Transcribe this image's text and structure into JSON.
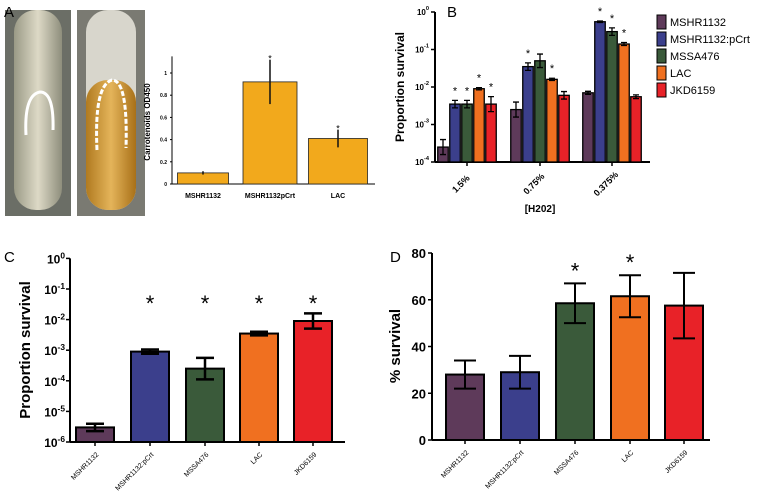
{
  "panel_labels": [
    "A",
    "B",
    "C",
    "D"
  ],
  "colors": {
    "MSHR1132": "#5e3a5a",
    "MSHR1132:pCrt": "#3b3f8c",
    "MSSA476": "#3a5a3a",
    "LAC": "#f07020",
    "JKD6159": "#e82228",
    "carotenoid": "#f2a91c"
  },
  "chart_data": [
    {
      "id": "A",
      "type": "bar",
      "categories": [
        "MSHR1132",
        "MSHR1132pCrt",
        "LAC"
      ],
      "values": [
        0.1,
        0.92,
        0.41
      ],
      "errors": [
        0.015,
        0.2,
        0.08
      ],
      "significance": [
        "",
        "*",
        "*"
      ],
      "ylabel": "Carrotenoids OD450",
      "xlabel": "",
      "ylim": [
        0,
        1.15
      ],
      "yticks": [
        0,
        0.2,
        0.4,
        0.6,
        0.8,
        1
      ],
      "ytick_labels": [
        "0",
        "0.2",
        "0.4",
        "0.6",
        "0.8",
        "1"
      ]
    },
    {
      "id": "B",
      "type": "bar",
      "scale": "log",
      "categories": [
        "1.5%",
        "0.75%",
        "0.375%"
      ],
      "series": [
        {
          "name": "MSHR1132",
          "values": [
            0.00025,
            0.0025,
            0.007
          ],
          "errors_log": [
            0.2,
            0.2,
            0.04
          ],
          "significance": [
            "",
            "",
            ""
          ]
        },
        {
          "name": "MSHR1132:pCrt",
          "values": [
            0.0035,
            0.035,
            0.55
          ],
          "errors_log": [
            0.1,
            0.1,
            0.02
          ],
          "significance": [
            "*",
            "*",
            "*"
          ]
        },
        {
          "name": "MSSA476",
          "values": [
            0.0035,
            0.05,
            0.3
          ],
          "errors_log": [
            0.1,
            0.18,
            0.1
          ],
          "significance": [
            "*",
            "",
            "*"
          ]
        },
        {
          "name": "LAC",
          "values": [
            0.009,
            0.016,
            0.14
          ],
          "errors_log": [
            0.03,
            0.03,
            0.04
          ],
          "significance": [
            "*",
            "*",
            "*"
          ]
        },
        {
          "name": "JKD6159",
          "values": [
            0.0035,
            0.006,
            0.0055
          ],
          "errors_log": [
            0.2,
            0.1,
            0.05
          ],
          "significance": [
            "*",
            "",
            ""
          ]
        }
      ],
      "xlabel": "[H202]",
      "ylabel": "Proportion survival",
      "ylim_log10": [
        -4,
        0
      ],
      "ytick_labels": [
        "10-4",
        "10-3",
        "10-2",
        "10-1",
        "100"
      ],
      "legend": "right"
    },
    {
      "id": "C",
      "type": "bar",
      "scale": "log",
      "categories": [
        "MSHR1132",
        "MSHR1132:pCrt",
        "MSSA476",
        "LAC",
        "JKD6159"
      ],
      "values": [
        3e-06,
        0.0009,
        0.00025,
        0.0035,
        0.009
      ],
      "errors_log": [
        0.12,
        0.07,
        0.35,
        0.06,
        0.25
      ],
      "significance": [
        "",
        "*",
        "*",
        "*",
        "*"
      ],
      "ylabel": "Proportion survival",
      "ylim_log10": [
        -6,
        0
      ],
      "ytick_labels": [
        "10-6",
        "10-5",
        "10-4",
        "10-3",
        "10-2",
        "10-1",
        "100"
      ]
    },
    {
      "id": "D",
      "type": "bar",
      "categories": [
        "MSHR1132",
        "MSHR1132:pCrt",
        "MSSA476",
        "LAC",
        "JKD6159"
      ],
      "values": [
        28,
        29,
        58.5,
        61.5,
        57.5
      ],
      "errors": [
        6,
        7,
        8.5,
        9,
        14
      ],
      "significance": [
        "",
        "",
        "*",
        "*",
        ""
      ],
      "ylabel": "% survival",
      "ylim": [
        0,
        80
      ],
      "yticks": [
        0,
        20,
        40,
        60,
        80
      ],
      "ytick_labels": [
        "0",
        "20",
        "40",
        "60",
        "80"
      ]
    }
  ]
}
